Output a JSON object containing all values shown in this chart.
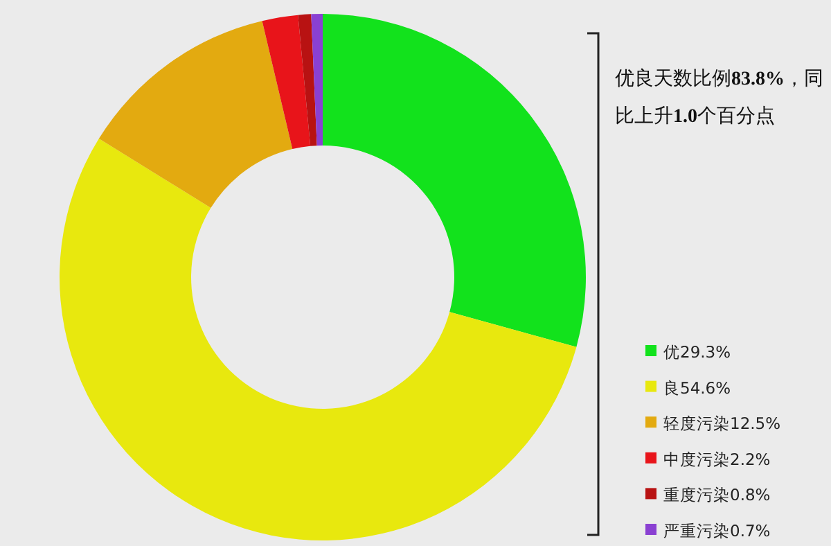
{
  "chart_data": {
    "type": "donut",
    "categories": [
      "优",
      "良",
      "轻度污染",
      "中度污染",
      "重度污染",
      "严重污染"
    ],
    "values": [
      29.3,
      54.6,
      12.5,
      2.2,
      0.8,
      0.7
    ],
    "value_labels": [
      "29.3%",
      "54.6%",
      "12.5%",
      "2.2%",
      "0.8%",
      "0.7%"
    ],
    "colors": [
      "#12e21c",
      "#e8e80e",
      "#e3aa10",
      "#e8141a",
      "#b81212",
      "#8a40d2"
    ],
    "annotations": [
      "优良天数比例83.8%，同比上升1.0个百分点"
    ],
    "legend": "bottom right"
  }
}
